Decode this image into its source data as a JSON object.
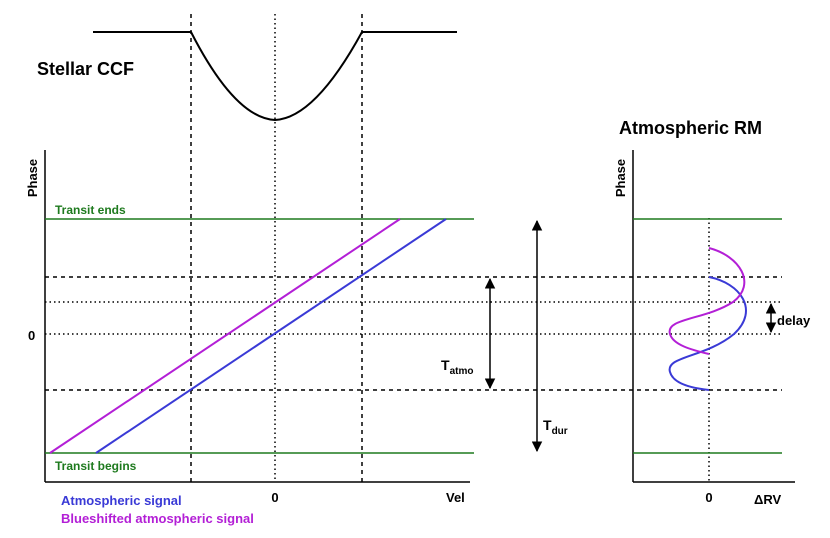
{
  "titles": {
    "ccf": "Stellar CCF",
    "rm": "Atmospheric RM"
  },
  "axes": {
    "left_y_label": "Phase",
    "left_x_label": "Vel",
    "left_y_zero": "0",
    "left_x_zero": "0",
    "right_y_label": "Phase",
    "right_x_label": "ΔRV",
    "right_x_zero": "0"
  },
  "annotations": {
    "transit_ends": "Transit ends",
    "transit_begins": "Transit begins",
    "t_atmo_main": "T",
    "t_atmo_sub": "atmo",
    "t_dur_main": "T",
    "t_dur_sub": "dur",
    "delay": "delay"
  },
  "legend": {
    "atmospheric": "Atmospheric signal",
    "blueshifted": "Blueshifted atmospheric signal"
  },
  "colors": {
    "transit_lines": "#1e7a1e",
    "atmospheric_signal": "#3a3ad6",
    "blueshifted_signal": "#b31fd6",
    "ink": "#000000"
  }
}
